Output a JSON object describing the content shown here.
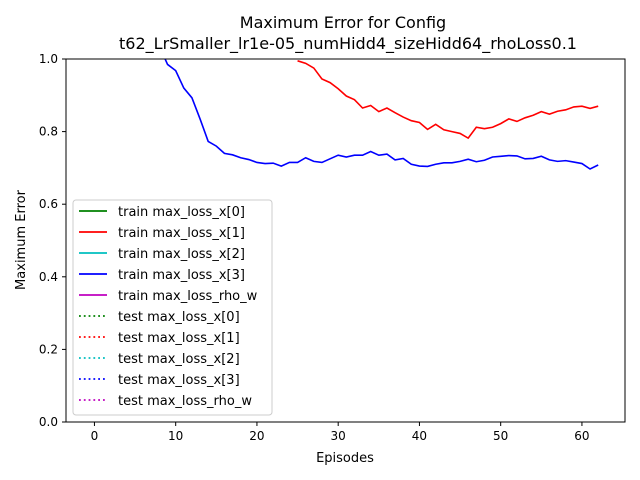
{
  "chart_data": {
    "type": "line",
    "title_line1": "Maximum Error for Config",
    "title_line2": "t62_LrSmaller_lr1e-05_numHidd4_sizeHidd64_rhoLoss0.1",
    "xlabel": "Episodes",
    "ylabel": "Maximum Error",
    "xlim": [
      -3.5,
      65.3
    ],
    "ylim": [
      0.0,
      1.0
    ],
    "xticks": [
      0,
      10,
      20,
      30,
      40,
      50,
      60
    ],
    "yticks": [
      0.0,
      0.2,
      0.4,
      0.6,
      0.8,
      1.0
    ],
    "grid": false,
    "legend_position": "lower-left",
    "legend": [
      {
        "label": "train max_loss_x[0]",
        "color": "#008000",
        "style": "solid"
      },
      {
        "label": "train max_loss_x[1]",
        "color": "#ff0000",
        "style": "solid"
      },
      {
        "label": "train max_loss_x[2]",
        "color": "#00bfbf",
        "style": "solid"
      },
      {
        "label": "train max_loss_x[3]",
        "color": "#0000ff",
        "style": "solid"
      },
      {
        "label": "train max_loss_rho_w",
        "color": "#bf00bf",
        "style": "solid"
      },
      {
        "label": "test max_loss_x[0]",
        "color": "#008000",
        "style": "dotted"
      },
      {
        "label": "test max_loss_x[1]",
        "color": "#ff0000",
        "style": "dotted"
      },
      {
        "label": "test max_loss_x[2]",
        "color": "#00bfbf",
        "style": "dotted"
      },
      {
        "label": "test max_loss_x[3]",
        "color": "#0000ff",
        "style": "dotted"
      },
      {
        "label": "test max_loss_rho_w",
        "color": "#bf00bf",
        "style": "dotted"
      }
    ],
    "series": [
      {
        "name": "train max_loss_x[1]",
        "color": "#ff0000",
        "x": [
          25,
          26,
          27,
          28,
          29,
          30,
          31,
          32,
          33,
          34,
          35,
          36,
          37,
          38,
          39,
          40,
          41,
          42,
          43,
          44,
          45,
          46,
          47,
          48,
          49,
          50,
          51,
          52,
          53,
          54,
          55,
          56,
          57,
          58,
          59,
          60,
          61,
          62
        ],
        "y": [
          0.995,
          0.988,
          0.975,
          0.945,
          0.935,
          0.918,
          0.898,
          0.888,
          0.865,
          0.872,
          0.855,
          0.865,
          0.852,
          0.84,
          0.83,
          0.825,
          0.806,
          0.82,
          0.805,
          0.8,
          0.795,
          0.782,
          0.812,
          0.808,
          0.812,
          0.822,
          0.835,
          0.828,
          0.838,
          0.845,
          0.855,
          0.848,
          0.856,
          0.86,
          0.868,
          0.87,
          0.864,
          0.87
        ]
      },
      {
        "name": "train max_loss_x[3]",
        "color": "#0000ff",
        "x": [
          8.7,
          9,
          10,
          11,
          12,
          13,
          14,
          15,
          16,
          17,
          18,
          19,
          20,
          21,
          22,
          23,
          24,
          25,
          26,
          27,
          28,
          29,
          30,
          31,
          32,
          33,
          34,
          35,
          36,
          37,
          38,
          39,
          40,
          41,
          42,
          43,
          44,
          45,
          46,
          47,
          48,
          49,
          50,
          51,
          52,
          53,
          54,
          55,
          56,
          57,
          58,
          59,
          60,
          61,
          62
        ],
        "y": [
          1.0,
          0.985,
          0.968,
          0.92,
          0.893,
          0.835,
          0.773,
          0.76,
          0.74,
          0.736,
          0.728,
          0.723,
          0.715,
          0.712,
          0.713,
          0.705,
          0.715,
          0.715,
          0.728,
          0.718,
          0.715,
          0.725,
          0.735,
          0.73,
          0.735,
          0.735,
          0.745,
          0.735,
          0.738,
          0.722,
          0.726,
          0.71,
          0.705,
          0.704,
          0.71,
          0.714,
          0.714,
          0.718,
          0.724,
          0.717,
          0.721,
          0.73,
          0.732,
          0.734,
          0.733,
          0.725,
          0.726,
          0.732,
          0.722,
          0.718,
          0.72,
          0.716,
          0.712,
          0.697,
          0.708
        ]
      }
    ]
  }
}
